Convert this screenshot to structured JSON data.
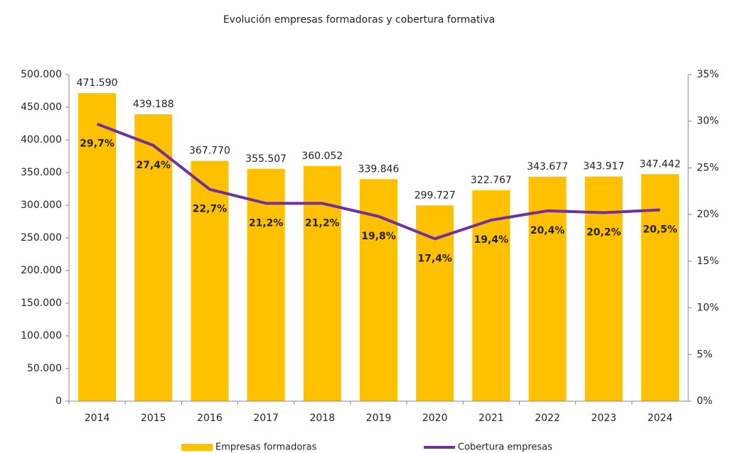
{
  "chart_data": {
    "type": "bar",
    "title": "Evolución empresas formadoras y cobertura formativa",
    "categories": [
      "2014",
      "2015",
      "2016",
      "2017",
      "2018",
      "2019",
      "2020",
      "2021",
      "2022",
      "2023",
      "2024"
    ],
    "series": [
      {
        "name": "Empresas formadoras",
        "color": "#ffc000",
        "values": [
          471590,
          439188,
          367770,
          355507,
          360052,
          339846,
          299727,
          322767,
          343677,
          343917,
          347442
        ],
        "value_labels": [
          "471.590",
          "439.188",
          "367.770",
          "355.507",
          "360.052",
          "339.846",
          "299.727",
          "322.767",
          "343.677",
          "343.917",
          "347.442"
        ]
      },
      {
        "name": "Cobertura empresas",
        "color": "#7030a0",
        "type": "line",
        "axis": "y2",
        "values": [
          29.7,
          27.4,
          22.7,
          21.2,
          21.2,
          19.8,
          17.4,
          19.4,
          20.4,
          20.2,
          20.5
        ],
        "value_labels": [
          "29,7%",
          "27,4%",
          "22,7%",
          "21,2%",
          "21,2%",
          "19,8%",
          "17,4%",
          "19,4%",
          "20,4%",
          "20,2%",
          "20,5%"
        ]
      }
    ],
    "ylim": [
      0,
      500000
    ],
    "yticks": [
      0,
      {
        "value": 50000,
        "label": "50.000"
      },
      {
        "value": 100000,
        "label": "100.000"
      },
      {
        "value": 150000,
        "label": "150.000"
      },
      {
        "value": 200000,
        "label": "200.000"
      },
      {
        "value": 250000,
        "label": "250.000"
      },
      {
        "value": 300000,
        "label": "300.000"
      },
      {
        "value": 350000,
        "label": "350.000"
      },
      {
        "value": 400000,
        "label": "400.000"
      },
      {
        "value": 450000,
        "label": "450.000"
      },
      {
        "value": 500000,
        "label": "500.000"
      }
    ],
    "y2lim": [
      0,
      35
    ],
    "y2ticks": [
      {
        "value": 0,
        "label": "0%"
      },
      {
        "value": 5,
        "label": "5%"
      },
      {
        "value": 10,
        "label": "10%"
      },
      {
        "value": 15,
        "label": "15%"
      },
      {
        "value": 20,
        "label": "20%"
      },
      {
        "value": 25,
        "label": "25%"
      },
      {
        "value": 30,
        "label": "30%"
      },
      {
        "value": 35,
        "label": "35%"
      }
    ],
    "grid": false,
    "legend": "bottom"
  }
}
